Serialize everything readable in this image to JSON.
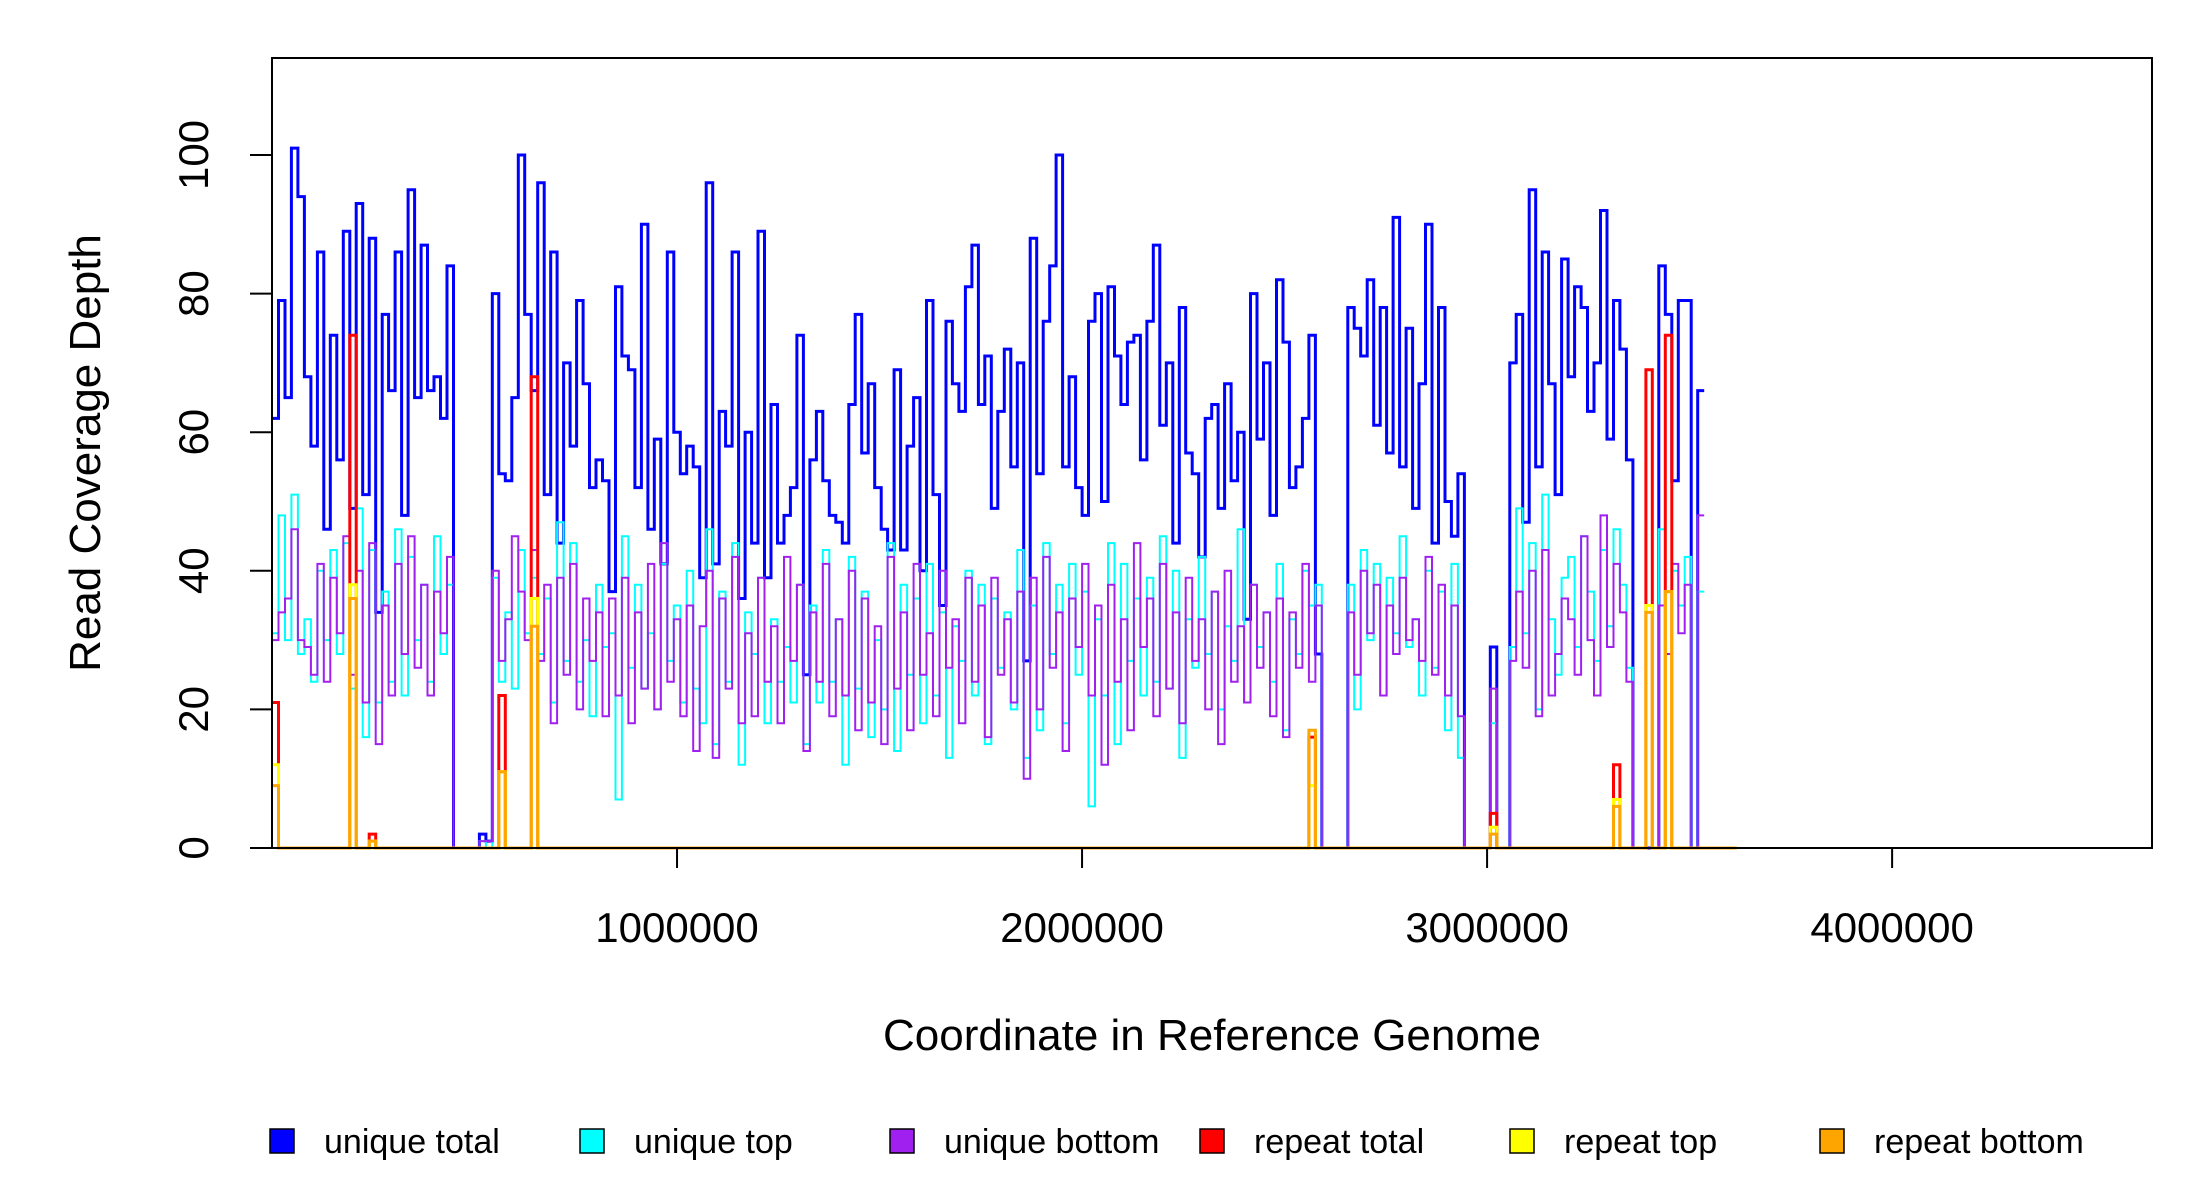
{
  "chart_data": {
    "type": "line",
    "title": "",
    "xlabel": "Coordinate in Reference Genome",
    "ylabel": "Read Coverage Depth",
    "xlim": [
      1,
      4641652
    ],
    "ylim": [
      0,
      114
    ],
    "x_ticks": [
      1000000,
      2000000,
      3000000,
      4000000
    ],
    "x_tick_labels": [
      "1000000",
      "2000000",
      "3000000",
      "4000000"
    ],
    "y_ticks": [
      0,
      20,
      40,
      60,
      80,
      100
    ],
    "y_tick_labels": [
      "0",
      "20",
      "40",
      "60",
      "80",
      "100"
    ],
    "grid": false,
    "legend_position": "bottom",
    "bin_width": 16000,
    "series": [
      {
        "name": "unique total",
        "color": "#0000FF",
        "values": [
          62,
          79,
          65,
          101,
          94,
          68,
          58,
          86,
          46,
          74,
          56,
          89,
          49,
          93,
          51,
          88,
          34,
          77,
          66,
          86,
          48,
          95,
          65,
          87,
          66,
          68,
          62,
          84,
          0,
          0,
          0,
          0,
          2,
          1,
          80,
          54,
          53,
          65,
          100,
          77,
          66,
          96,
          51,
          86,
          44,
          70,
          58,
          79,
          67,
          52,
          56,
          53,
          37,
          81,
          71,
          69,
          52,
          90,
          46,
          59,
          41,
          86,
          60,
          54,
          58,
          55,
          39,
          96,
          41,
          63,
          58,
          86,
          36,
          60,
          44,
          89,
          39,
          64,
          44,
          48,
          52,
          74,
          25,
          56,
          63,
          53,
          48,
          47,
          44,
          64,
          77,
          57,
          67,
          52,
          46,
          43,
          69,
          43,
          58,
          65,
          40,
          79,
          51,
          35,
          76,
          67,
          63,
          81,
          87,
          64,
          71,
          49,
          63,
          72,
          55,
          70,
          27,
          88,
          54,
          76,
          84,
          100,
          55,
          68,
          52,
          48,
          76,
          80,
          50,
          81,
          71,
          64,
          73,
          74,
          56,
          76,
          87,
          61,
          70,
          44,
          78,
          57,
          54,
          42,
          62,
          64,
          49,
          67,
          53,
          60,
          33,
          80,
          59,
          70,
          48,
          82,
          73,
          52,
          55,
          62,
          74,
          28,
          0,
          0,
          0,
          0,
          78,
          75,
          71,
          82,
          61,
          78,
          57,
          91,
          55,
          75,
          49,
          67,
          90,
          44,
          78,
          50,
          45,
          54,
          0,
          0,
          0,
          0,
          29,
          0,
          0,
          70,
          77,
          47,
          95,
          55,
          86,
          67,
          51,
          85,
          68,
          81,
          78,
          63,
          70,
          92,
          59,
          79,
          72,
          56,
          0,
          0,
          0,
          0,
          84,
          77,
          53,
          79,
          79,
          0,
          66
        ],
        "style": "step"
      },
      {
        "name": "unique top",
        "color": "#00FFFF",
        "values": [
          31,
          48,
          30,
          51,
          28,
          33,
          24,
          40,
          30,
          43,
          28,
          44,
          23,
          49,
          16,
          43,
          21,
          37,
          24,
          46,
          22,
          42,
          30,
          38,
          24,
          45,
          28,
          38,
          0,
          0,
          0,
          0,
          1,
          0,
          39,
          24,
          34,
          23,
          43,
          31,
          39,
          28,
          36,
          21,
          47,
          27,
          44,
          24,
          30,
          19,
          38,
          29,
          31,
          7,
          45,
          26,
          38,
          23,
          31,
          20,
          41,
          27,
          35,
          21,
          40,
          23,
          18,
          46,
          15,
          37,
          24,
          44,
          12,
          34,
          28,
          39,
          18,
          33,
          24,
          29,
          21,
          38,
          15,
          35,
          21,
          43,
          24,
          33,
          12,
          42,
          23,
          37,
          16,
          30,
          20,
          44,
          14,
          38,
          25,
          36,
          18,
          41,
          22,
          34,
          13,
          32,
          27,
          40,
          22,
          38,
          15,
          36,
          26,
          34,
          20,
          43,
          13,
          35,
          17,
          44,
          28,
          38,
          18,
          41,
          25,
          37,
          6,
          33,
          22,
          44,
          15,
          41,
          27,
          36,
          22,
          39,
          24,
          45,
          23,
          40,
          13,
          33,
          26,
          42,
          28,
          37,
          20,
          32,
          27,
          46,
          21,
          38,
          29,
          34,
          24,
          41,
          17,
          33,
          28,
          40,
          35,
          38,
          0,
          0,
          0,
          0,
          38,
          20,
          43,
          30,
          41,
          22,
          39,
          31,
          45,
          29,
          33,
          22,
          40,
          26,
          37,
          17,
          41,
          13,
          0,
          0,
          0,
          0,
          18,
          0,
          0,
          29,
          49,
          31,
          44,
          20,
          51,
          33,
          25,
          39,
          42,
          29,
          45,
          37,
          27,
          43,
          32,
          46,
          38,
          26,
          0,
          0,
          0,
          0,
          46,
          28,
          40,
          35,
          42,
          0,
          37
        ],
        "style": "step"
      },
      {
        "name": "unique bottom",
        "color": "#A020F0",
        "values": [
          30,
          34,
          36,
          46,
          30,
          29,
          25,
          41,
          24,
          39,
          31,
          45,
          25,
          40,
          21,
          44,
          15,
          35,
          22,
          41,
          28,
          45,
          26,
          38,
          22,
          37,
          31,
          42,
          0,
          0,
          0,
          0,
          1,
          1,
          40,
          27,
          33,
          45,
          37,
          30,
          43,
          27,
          38,
          18,
          39,
          25,
          41,
          20,
          36,
          27,
          34,
          19,
          36,
          22,
          39,
          18,
          34,
          23,
          41,
          20,
          44,
          24,
          33,
          19,
          35,
          14,
          32,
          40,
          13,
          36,
          23,
          42,
          18,
          31,
          19,
          39,
          24,
          32,
          18,
          42,
          27,
          38,
          14,
          34,
          24,
          41,
          19,
          33,
          22,
          40,
          17,
          36,
          21,
          32,
          15,
          42,
          23,
          34,
          17,
          41,
          25,
          31,
          19,
          40,
          26,
          33,
          18,
          39,
          24,
          35,
          16,
          39,
          25,
          33,
          21,
          37,
          10,
          39,
          20,
          42,
          26,
          34,
          14,
          36,
          29,
          41,
          22,
          35,
          12,
          38,
          24,
          33,
          17,
          44,
          29,
          36,
          19,
          41,
          23,
          34,
          18,
          39,
          27,
          33,
          20,
          37,
          15,
          40,
          24,
          32,
          21,
          38,
          26,
          34,
          19,
          36,
          16,
          34,
          26,
          41,
          24,
          35,
          0,
          0,
          0,
          0,
          34,
          25,
          40,
          31,
          38,
          22,
          35,
          28,
          39,
          30,
          33,
          27,
          42,
          25,
          38,
          22,
          35,
          19,
          0,
          0,
          0,
          0,
          23,
          0,
          0,
          27,
          37,
          26,
          40,
          19,
          43,
          22,
          28,
          36,
          33,
          25,
          45,
          30,
          22,
          48,
          29,
          41,
          34,
          24,
          0,
          0,
          0,
          0,
          35,
          28,
          41,
          31,
          38,
          0,
          48
        ],
        "style": "step"
      },
      {
        "name": "repeat total",
        "color": "#FF0000",
        "values": [
          21,
          0,
          0,
          0,
          0,
          0,
          0,
          0,
          0,
          0,
          0,
          0,
          74,
          0,
          0,
          2,
          0,
          0,
          0,
          0,
          0,
          0,
          0,
          0,
          0,
          0,
          0,
          0,
          0,
          0,
          0,
          0,
          0,
          0,
          0,
          22,
          0,
          0,
          0,
          0,
          68,
          0,
          0,
          0,
          0,
          0,
          0,
          0,
          0,
          0,
          0,
          0,
          0,
          0,
          0,
          0,
          0,
          0,
          0,
          0,
          0,
          0,
          0,
          0,
          0,
          0,
          0,
          0,
          0,
          0,
          0,
          0,
          0,
          0,
          0,
          0,
          0,
          0,
          0,
          0,
          0,
          0,
          0,
          0,
          0,
          0,
          0,
          0,
          0,
          0,
          0,
          0,
          0,
          0,
          0,
          0,
          0,
          0,
          0,
          0,
          0,
          0,
          0,
          0,
          0,
          0,
          0,
          0,
          0,
          0,
          0,
          0,
          0,
          0,
          0,
          0,
          0,
          0,
          0,
          0,
          0,
          0,
          0,
          0,
          0,
          0,
          0,
          0,
          0,
          0,
          0,
          0,
          0,
          0,
          0,
          0,
          0,
          0,
          0,
          0,
          0,
          0,
          0,
          0,
          0,
          0,
          0,
          0,
          0,
          0,
          0,
          0,
          0,
          0,
          0,
          0,
          0,
          0,
          0,
          0,
          16,
          0,
          0,
          0,
          0,
          0,
          0,
          0,
          0,
          0,
          0,
          0,
          0,
          0,
          0,
          0,
          0,
          0,
          0,
          0,
          0,
          0,
          0,
          0,
          0,
          0,
          0,
          0,
          5,
          0,
          0,
          0,
          0,
          0,
          0,
          0,
          0,
          0,
          0,
          0,
          0,
          0,
          0,
          0,
          0,
          0,
          0,
          12,
          0,
          0,
          0,
          0,
          69,
          0,
          0,
          74,
          0,
          0,
          0,
          0,
          0,
          0,
          0,
          0,
          0,
          0
        ],
        "style": "step"
      },
      {
        "name": "repeat top",
        "color": "#FFFF00",
        "values": [
          12,
          0,
          0,
          0,
          0,
          0,
          0,
          0,
          0,
          0,
          0,
          0,
          38,
          0,
          0,
          1,
          0,
          0,
          0,
          0,
          0,
          0,
          0,
          0,
          0,
          0,
          0,
          0,
          0,
          0,
          0,
          0,
          0,
          0,
          0,
          11,
          0,
          0,
          0,
          0,
          36,
          0,
          0,
          0,
          0,
          0,
          0,
          0,
          0,
          0,
          0,
          0,
          0,
          0,
          0,
          0,
          0,
          0,
          0,
          0,
          0,
          0,
          0,
          0,
          0,
          0,
          0,
          0,
          0,
          0,
          0,
          0,
          0,
          0,
          0,
          0,
          0,
          0,
          0,
          0,
          0,
          0,
          0,
          0,
          0,
          0,
          0,
          0,
          0,
          0,
          0,
          0,
          0,
          0,
          0,
          0,
          0,
          0,
          0,
          0,
          0,
          0,
          0,
          0,
          0,
          0,
          0,
          0,
          0,
          0,
          0,
          0,
          0,
          0,
          0,
          0,
          0,
          0,
          0,
          0,
          0,
          0,
          0,
          0,
          0,
          0,
          0,
          0,
          0,
          0,
          0,
          0,
          0,
          0,
          0,
          0,
          0,
          0,
          0,
          0,
          0,
          0,
          0,
          0,
          0,
          0,
          0,
          0,
          0,
          0,
          0,
          0,
          0,
          0,
          0,
          0,
          0,
          0,
          0,
          0,
          9,
          0,
          0,
          0,
          0,
          0,
          0,
          0,
          0,
          0,
          0,
          0,
          0,
          0,
          0,
          0,
          0,
          0,
          0,
          0,
          0,
          0,
          0,
          0,
          0,
          0,
          0,
          0,
          3,
          0,
          0,
          0,
          0,
          0,
          0,
          0,
          0,
          0,
          0,
          0,
          0,
          0,
          0,
          0,
          0,
          0,
          0,
          7,
          0,
          0,
          0,
          0,
          35,
          0,
          0,
          37,
          0,
          0,
          0,
          0,
          0,
          0,
          0,
          0,
          0,
          0
        ],
        "style": "step"
      },
      {
        "name": "repeat bottom",
        "color": "#FFA500",
        "values": [
          9,
          0,
          0,
          0,
          0,
          0,
          0,
          0,
          0,
          0,
          0,
          0,
          36,
          0,
          0,
          1,
          0,
          0,
          0,
          0,
          0,
          0,
          0,
          0,
          0,
          0,
          0,
          0,
          0,
          0,
          0,
          0,
          0,
          0,
          0,
          11,
          0,
          0,
          0,
          0,
          32,
          0,
          0,
          0,
          0,
          0,
          0,
          0,
          0,
          0,
          0,
          0,
          0,
          0,
          0,
          0,
          0,
          0,
          0,
          0,
          0,
          0,
          0,
          0,
          0,
          0,
          0,
          0,
          0,
          0,
          0,
          0,
          0,
          0,
          0,
          0,
          0,
          0,
          0,
          0,
          0,
          0,
          0,
          0,
          0,
          0,
          0,
          0,
          0,
          0,
          0,
          0,
          0,
          0,
          0,
          0,
          0,
          0,
          0,
          0,
          0,
          0,
          0,
          0,
          0,
          0,
          0,
          0,
          0,
          0,
          0,
          0,
          0,
          0,
          0,
          0,
          0,
          0,
          0,
          0,
          0,
          0,
          0,
          0,
          0,
          0,
          0,
          0,
          0,
          0,
          0,
          0,
          0,
          0,
          0,
          0,
          0,
          0,
          0,
          0,
          0,
          0,
          0,
          0,
          0,
          0,
          0,
          0,
          0,
          0,
          0,
          0,
          0,
          0,
          0,
          0,
          0,
          0,
          0,
          0,
          17,
          0,
          0,
          0,
          0,
          0,
          0,
          0,
          0,
          0,
          0,
          0,
          0,
          0,
          0,
          0,
          0,
          0,
          0,
          0,
          0,
          0,
          0,
          0,
          0,
          0,
          0,
          0,
          2,
          0,
          0,
          0,
          0,
          0,
          0,
          0,
          0,
          0,
          0,
          0,
          0,
          0,
          0,
          0,
          0,
          0,
          0,
          6,
          0,
          0,
          0,
          0,
          34,
          0,
          0,
          37,
          0,
          0,
          0,
          0,
          0,
          0,
          0,
          0,
          0,
          0
        ],
        "style": "step"
      }
    ]
  }
}
